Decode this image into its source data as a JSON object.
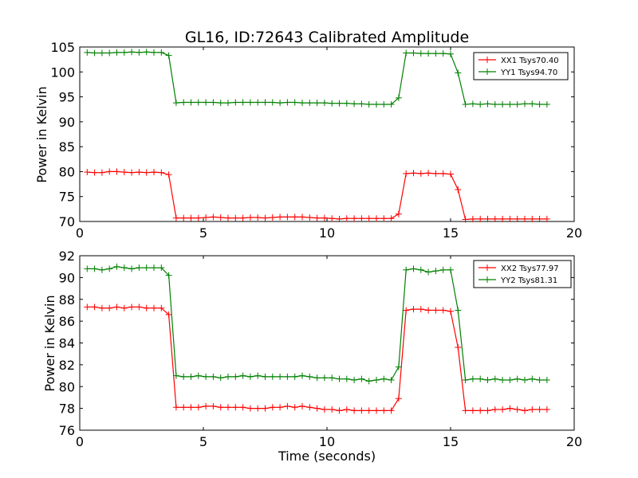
{
  "chart_data": [
    {
      "type": "line",
      "title": "GL16, ID:72643 Calibrated Amplitude",
      "xlabel": "",
      "ylabel": "Power in Kelvin",
      "xlim": [
        0,
        20
      ],
      "ylim": [
        70,
        105
      ],
      "xticks": [
        "0",
        "5",
        "10",
        "15",
        "20"
      ],
      "yticks": [
        "70",
        "75",
        "80",
        "85",
        "90",
        "95",
        "100",
        "105"
      ],
      "legend_position": "top-right",
      "series": [
        {
          "name": "XX1 Tsys70.40",
          "color": "#ff0000",
          "x": [
            0.3,
            0.6,
            0.9,
            1.2,
            1.5,
            1.8,
            2.1,
            2.4,
            2.7,
            3.0,
            3.3,
            3.6,
            3.9,
            4.2,
            4.5,
            4.8,
            5.1,
            5.4,
            5.7,
            6.0,
            6.3,
            6.6,
            6.9,
            7.2,
            7.5,
            7.8,
            8.1,
            8.4,
            8.7,
            9.0,
            9.3,
            9.6,
            9.9,
            10.2,
            10.5,
            10.8,
            11.1,
            11.4,
            11.7,
            12.0,
            12.3,
            12.6,
            12.9,
            13.2,
            13.5,
            13.8,
            14.1,
            14.4,
            14.7,
            15.0,
            15.3,
            15.6,
            15.9,
            16.2,
            16.5,
            16.8,
            17.1,
            17.4,
            17.7,
            18.0,
            18.3,
            18.6,
            18.9
          ],
          "values": [
            79.9,
            79.8,
            79.8,
            80.0,
            80.0,
            79.9,
            79.8,
            79.9,
            79.8,
            79.9,
            79.8,
            79.4,
            70.7,
            70.7,
            70.7,
            70.7,
            70.8,
            70.9,
            70.8,
            70.7,
            70.7,
            70.7,
            70.8,
            70.8,
            70.7,
            70.8,
            70.9,
            70.9,
            70.9,
            70.9,
            70.8,
            70.7,
            70.7,
            70.6,
            70.5,
            70.6,
            70.6,
            70.6,
            70.6,
            70.6,
            70.6,
            70.6,
            71.5,
            79.6,
            79.7,
            79.6,
            79.7,
            79.6,
            79.6,
            79.5,
            76.4,
            70.4,
            70.5,
            70.5,
            70.5,
            70.5,
            70.5,
            70.5,
            70.5,
            70.5,
            70.5,
            70.5,
            70.5
          ]
        },
        {
          "name": "YY1 Tsys94.70",
          "color": "#008000",
          "x": [
            0.3,
            0.6,
            0.9,
            1.2,
            1.5,
            1.8,
            2.1,
            2.4,
            2.7,
            3.0,
            3.3,
            3.6,
            3.9,
            4.2,
            4.5,
            4.8,
            5.1,
            5.4,
            5.7,
            6.0,
            6.3,
            6.6,
            6.9,
            7.2,
            7.5,
            7.8,
            8.1,
            8.4,
            8.7,
            9.0,
            9.3,
            9.6,
            9.9,
            10.2,
            10.5,
            10.8,
            11.1,
            11.4,
            11.7,
            12.0,
            12.3,
            12.6,
            12.9,
            13.2,
            13.5,
            13.8,
            14.1,
            14.4,
            14.7,
            15.0,
            15.3,
            15.6,
            15.9,
            16.2,
            16.5,
            16.8,
            17.1,
            17.4,
            17.7,
            18.0,
            18.3,
            18.6,
            18.9
          ],
          "values": [
            103.9,
            103.8,
            103.8,
            103.8,
            103.9,
            103.9,
            104.0,
            103.9,
            104.0,
            103.9,
            103.9,
            103.3,
            93.8,
            93.9,
            93.9,
            93.9,
            93.9,
            93.9,
            93.8,
            93.8,
            93.9,
            93.9,
            93.9,
            93.9,
            93.9,
            93.9,
            93.8,
            93.9,
            93.9,
            93.8,
            93.8,
            93.8,
            93.8,
            93.7,
            93.7,
            93.7,
            93.6,
            93.6,
            93.5,
            93.5,
            93.5,
            93.5,
            94.8,
            103.8,
            103.8,
            103.7,
            103.7,
            103.7,
            103.7,
            103.6,
            99.8,
            93.5,
            93.6,
            93.5,
            93.6,
            93.5,
            93.5,
            93.5,
            93.5,
            93.6,
            93.6,
            93.5,
            93.5
          ]
        }
      ]
    },
    {
      "type": "line",
      "title": "",
      "xlabel": "Time (seconds)",
      "ylabel": "Power in Kelvin",
      "xlim": [
        0,
        20
      ],
      "ylim": [
        76,
        92
      ],
      "xticks": [
        "0",
        "5",
        "10",
        "15",
        "20"
      ],
      "yticks": [
        "76",
        "78",
        "80",
        "82",
        "84",
        "86",
        "88",
        "90",
        "92"
      ],
      "legend_position": "top-right",
      "series": [
        {
          "name": "XX2 Tsys77.97",
          "color": "#ff0000",
          "x": [
            0.3,
            0.6,
            0.9,
            1.2,
            1.5,
            1.8,
            2.1,
            2.4,
            2.7,
            3.0,
            3.3,
            3.6,
            3.9,
            4.2,
            4.5,
            4.8,
            5.1,
            5.4,
            5.7,
            6.0,
            6.3,
            6.6,
            6.9,
            7.2,
            7.5,
            7.8,
            8.1,
            8.4,
            8.7,
            9.0,
            9.3,
            9.6,
            9.9,
            10.2,
            10.5,
            10.8,
            11.1,
            11.4,
            11.7,
            12.0,
            12.3,
            12.6,
            12.9,
            13.2,
            13.5,
            13.8,
            14.1,
            14.4,
            14.7,
            15.0,
            15.3,
            15.6,
            15.9,
            16.2,
            16.5,
            16.8,
            17.1,
            17.4,
            17.7,
            18.0,
            18.3,
            18.6,
            18.9
          ],
          "values": [
            87.3,
            87.3,
            87.2,
            87.2,
            87.3,
            87.2,
            87.3,
            87.3,
            87.2,
            87.2,
            87.2,
            86.6,
            78.1,
            78.1,
            78.1,
            78.1,
            78.2,
            78.2,
            78.1,
            78.1,
            78.1,
            78.1,
            78.0,
            78.0,
            78.0,
            78.1,
            78.1,
            78.2,
            78.1,
            78.2,
            78.1,
            78.0,
            77.9,
            77.9,
            77.8,
            77.9,
            77.8,
            77.8,
            77.8,
            77.8,
            77.8,
            77.8,
            78.9,
            87.0,
            87.1,
            87.1,
            87.0,
            87.0,
            87.0,
            86.9,
            83.6,
            77.8,
            77.8,
            77.8,
            77.8,
            77.9,
            77.9,
            78.0,
            77.9,
            77.8,
            77.9,
            77.9,
            77.9
          ]
        },
        {
          "name": "YY2 Tsys81.31",
          "color": "#008000",
          "x": [
            0.3,
            0.6,
            0.9,
            1.2,
            1.5,
            1.8,
            2.1,
            2.4,
            2.7,
            3.0,
            3.3,
            3.6,
            3.9,
            4.2,
            4.5,
            4.8,
            5.1,
            5.4,
            5.7,
            6.0,
            6.3,
            6.6,
            6.9,
            7.2,
            7.5,
            7.8,
            8.1,
            8.4,
            8.7,
            9.0,
            9.3,
            9.6,
            9.9,
            10.2,
            10.5,
            10.8,
            11.1,
            11.4,
            11.7,
            12.0,
            12.3,
            12.6,
            12.9,
            13.2,
            13.5,
            13.8,
            14.1,
            14.4,
            14.7,
            15.0,
            15.3,
            15.6,
            15.9,
            16.2,
            16.5,
            16.8,
            17.1,
            17.4,
            17.7,
            18.0,
            18.3,
            18.6,
            18.9
          ],
          "values": [
            90.8,
            90.8,
            90.7,
            90.8,
            91.0,
            90.9,
            90.8,
            90.9,
            90.9,
            90.9,
            90.9,
            90.2,
            81.0,
            80.9,
            80.9,
            81.0,
            80.9,
            80.9,
            80.8,
            80.9,
            80.9,
            81.0,
            80.9,
            81.0,
            80.9,
            80.9,
            80.9,
            80.9,
            80.9,
            81.0,
            80.9,
            80.8,
            80.8,
            80.8,
            80.7,
            80.7,
            80.6,
            80.7,
            80.5,
            80.6,
            80.7,
            80.6,
            81.8,
            90.7,
            90.8,
            90.7,
            90.5,
            90.6,
            90.7,
            90.7,
            87.0,
            80.6,
            80.7,
            80.7,
            80.6,
            80.7,
            80.6,
            80.6,
            80.7,
            80.6,
            80.7,
            80.6,
            80.6
          ]
        }
      ]
    }
  ]
}
